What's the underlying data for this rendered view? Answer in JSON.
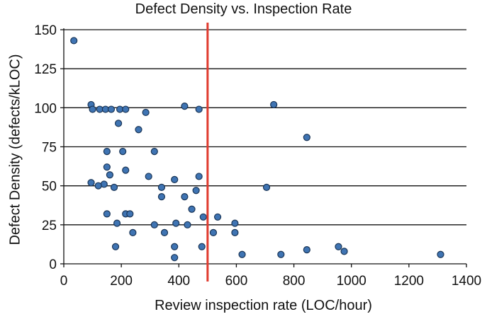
{
  "chart_data": {
    "type": "scatter",
    "title": "Defect Density vs. Inspection Rate",
    "xlabel": "Review inspection rate (LOC/hour)",
    "ylabel": "Defect Density (defects/kLOC)",
    "xlim": [
      0,
      1400
    ],
    "ylim": [
      0,
      150
    ],
    "x_ticks": [
      0,
      200,
      400,
      600,
      800,
      1000,
      1200,
      1400
    ],
    "y_ticks": [
      0,
      25,
      50,
      75,
      100,
      125,
      150
    ],
    "grid": "horizontal",
    "reference_line": {
      "x": 500,
      "color": "#e03a2e"
    },
    "point_color": "#3f74b3",
    "points": [
      [
        35,
        143
      ],
      [
        95,
        102
      ],
      [
        100,
        99
      ],
      [
        125,
        99
      ],
      [
        145,
        99
      ],
      [
        165,
        99
      ],
      [
        195,
        99
      ],
      [
        215,
        99
      ],
      [
        285,
        97
      ],
      [
        420,
        101
      ],
      [
        470,
        99
      ],
      [
        730,
        102
      ],
      [
        190,
        90
      ],
      [
        260,
        86
      ],
      [
        845,
        81
      ],
      [
        150,
        72
      ],
      [
        205,
        72
      ],
      [
        315,
        72
      ],
      [
        215,
        60
      ],
      [
        150,
        62
      ],
      [
        160,
        57
      ],
      [
        295,
        56
      ],
      [
        385,
        54
      ],
      [
        470,
        56
      ],
      [
        95,
        52
      ],
      [
        140,
        51
      ],
      [
        120,
        50
      ],
      [
        175,
        49
      ],
      [
        340,
        49
      ],
      [
        460,
        47
      ],
      [
        705,
        49
      ],
      [
        340,
        43
      ],
      [
        420,
        43
      ],
      [
        445,
        35
      ],
      [
        150,
        32
      ],
      [
        215,
        32
      ],
      [
        230,
        32
      ],
      [
        185,
        26
      ],
      [
        315,
        25
      ],
      [
        390,
        26
      ],
      [
        430,
        25
      ],
      [
        485,
        30
      ],
      [
        535,
        30
      ],
      [
        595,
        26
      ],
      [
        240,
        20
      ],
      [
        350,
        20
      ],
      [
        520,
        20
      ],
      [
        595,
        20
      ],
      [
        180,
        11
      ],
      [
        385,
        11
      ],
      [
        480,
        11
      ],
      [
        955,
        11
      ],
      [
        845,
        9
      ],
      [
        975,
        8
      ],
      [
        620,
        6
      ],
      [
        755,
        6
      ],
      [
        1310,
        6
      ],
      [
        385,
        4
      ]
    ]
  }
}
